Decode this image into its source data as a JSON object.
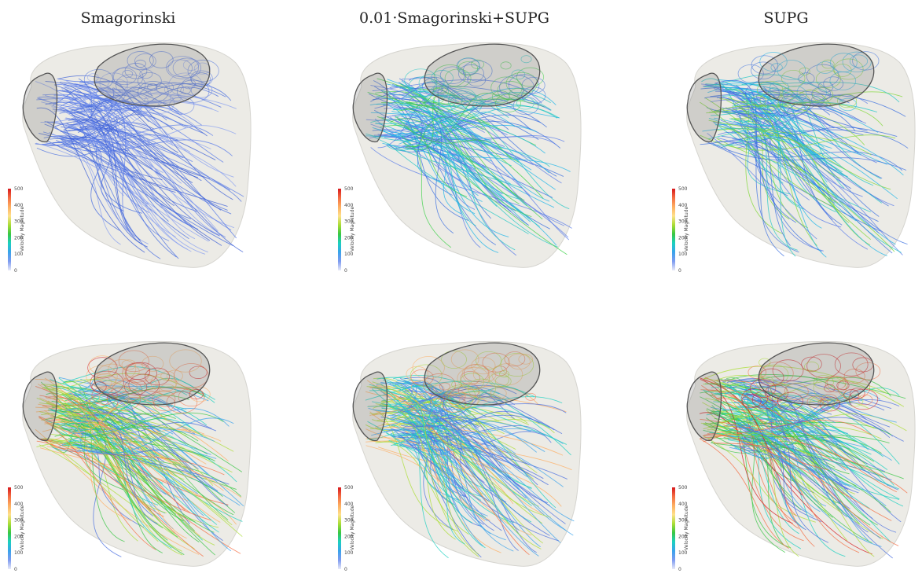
{
  "columns": [
    {
      "title": "Smagorinski"
    },
    {
      "title": "0.01·Smagorinski+SUPG"
    },
    {
      "title": "SUPG"
    }
  ],
  "colorbar": {
    "title": "Velocity Magnitude",
    "ticks": [
      "500",
      "400",
      "300",
      "200",
      "100",
      "0"
    ],
    "colors": [
      "#d7191c",
      "#f46d43",
      "#fdae61",
      "#fee08b",
      "#abdd35",
      "#38c744",
      "#1bd0c0",
      "#3aa3ec",
      "#7e9bf0",
      "#e8eaf8"
    ]
  },
  "panels": [
    {
      "row": 1,
      "col": 1,
      "jet": "none"
    },
    {
      "row": 1,
      "col": 2,
      "jet": "vortex-green"
    },
    {
      "row": 1,
      "col": 3,
      "jet": "vortex-yellow"
    },
    {
      "row": 2,
      "col": 1,
      "jet": "jet-red"
    },
    {
      "row": 2,
      "col": 2,
      "jet": "jet-orange"
    },
    {
      "row": 2,
      "col": 3,
      "jet": "jet-red-vortex"
    }
  ]
}
